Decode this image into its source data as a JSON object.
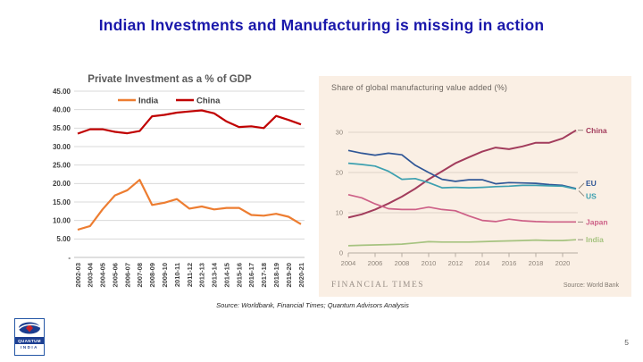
{
  "slide": {
    "title": "Indian Investments and Manufacturing is missing in action",
    "source_note": "Source: Worldbank, Financial Times; Quantum Advisors Analysis",
    "page_number": "5"
  },
  "logo": {
    "brand": "QUANTUM",
    "country": "INDIA"
  },
  "chart_data": [
    {
      "id": "private-investment",
      "type": "line",
      "title": "Private Investment as a % of GDP",
      "categories": [
        "2002-03",
        "2003-04",
        "2004-05",
        "2005-06",
        "2006-07",
        "2007-08",
        "2008-09",
        "2009-10",
        "2010-11",
        "2011-12",
        "2012-13",
        "2013-14",
        "2014-15",
        "2015-16",
        "2016-17",
        "2017-18",
        "2018-19",
        "2019-20",
        "2020-21"
      ],
      "series": [
        {
          "name": "India",
          "color": "#ED7D31",
          "values": [
            7.5,
            8.5,
            13.0,
            16.8,
            18.2,
            21.0,
            14.2,
            14.8,
            15.8,
            13.2,
            13.8,
            13.0,
            13.4,
            13.4,
            11.5,
            11.3,
            11.8,
            11.0,
            9.0
          ]
        },
        {
          "name": "China",
          "color": "#C00000",
          "values": [
            33.5,
            34.7,
            34.7,
            34.0,
            33.6,
            34.2,
            38.2,
            38.6,
            39.2,
            39.5,
            39.8,
            39.0,
            36.8,
            35.3,
            35.5,
            35.0,
            38.3,
            37.2,
            36.0
          ]
        }
      ],
      "ylim": [
        0,
        45
      ],
      "ytick_step": 5,
      "ytick_labels": [
        "-",
        "5.00",
        "10.00",
        "15.00",
        "20.00",
        "25.00",
        "30.00",
        "35.00",
        "40.00",
        "45.00"
      ],
      "grid": true,
      "legend_position": "top"
    },
    {
      "id": "manufacturing-share",
      "type": "line",
      "title": "Share of global manufacturing value added (%)",
      "x": [
        2004,
        2005,
        2006,
        2007,
        2008,
        2009,
        2010,
        2011,
        2012,
        2013,
        2014,
        2015,
        2016,
        2017,
        2018,
        2019,
        2020,
        2021
      ],
      "xticks": [
        2004,
        2006,
        2008,
        2010,
        2012,
        2014,
        2016,
        2018,
        2020
      ],
      "yticks": [
        0,
        10,
        20,
        30
      ],
      "ylim": [
        0,
        32
      ],
      "grid": true,
      "legend_position": "right-labels",
      "series": [
        {
          "name": "China",
          "color": "#a23c5c",
          "values": [
            8.8,
            9.6,
            10.8,
            12.3,
            14.0,
            16.0,
            18.3,
            20.3,
            22.3,
            23.8,
            25.2,
            26.2,
            25.8,
            26.5,
            27.4,
            27.4,
            28.5,
            30.5
          ]
        },
        {
          "name": "EU",
          "color": "#2f5696",
          "values": [
            25.5,
            24.8,
            24.3,
            24.8,
            24.4,
            21.8,
            20.0,
            18.3,
            17.8,
            18.2,
            18.2,
            17.2,
            17.5,
            17.4,
            17.3,
            17.0,
            16.8,
            16.0
          ]
        },
        {
          "name": "US",
          "color": "#3da0b0",
          "values": [
            22.3,
            22.0,
            21.6,
            20.3,
            18.3,
            18.5,
            17.5,
            16.2,
            16.3,
            16.2,
            16.3,
            16.5,
            16.6,
            16.8,
            16.8,
            16.7,
            16.6,
            15.9
          ]
        },
        {
          "name": "Japan",
          "color": "#cd6087",
          "values": [
            14.5,
            13.7,
            12.2,
            11.0,
            10.8,
            10.8,
            11.4,
            10.8,
            10.5,
            9.2,
            8.1,
            7.8,
            8.4,
            8.0,
            7.8,
            7.7,
            7.7,
            7.7
          ]
        },
        {
          "name": "India",
          "color": "#a6c380",
          "values": [
            1.8,
            1.9,
            2.0,
            2.1,
            2.2,
            2.5,
            2.8,
            2.7,
            2.7,
            2.7,
            2.8,
            2.9,
            3.0,
            3.1,
            3.2,
            3.1,
            3.1,
            3.3
          ]
        }
      ],
      "branding": "FINANCIAL TIMES",
      "source": "Source: World Bank",
      "background": "#faefe4"
    }
  ]
}
